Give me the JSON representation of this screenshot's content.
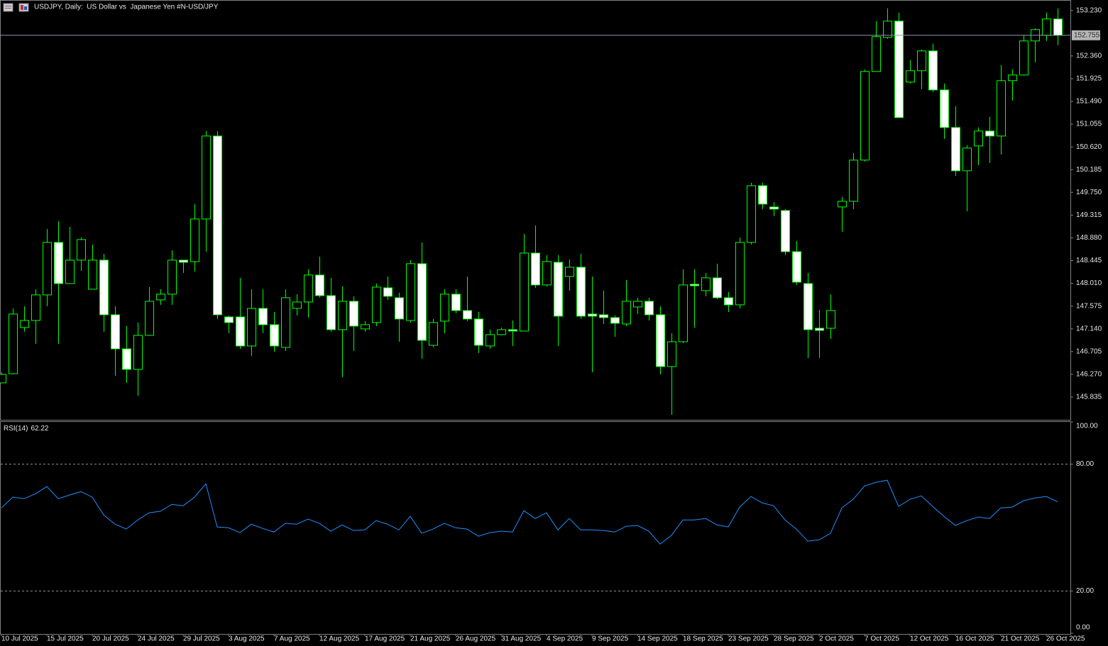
{
  "chart_data": [
    {
      "type": "candlestick",
      "title": "USDJPY, Daily:  US Dollar vs  Japanese Yen #N-USD/JPY",
      "categories": [
        "10 Jul 2025",
        null,
        null,
        null,
        "15 Jul 2025",
        null,
        null,
        null,
        "20 Jul 2025",
        null,
        null,
        null,
        "24 Jul 2025",
        null,
        null,
        null,
        "29 Jul 2025",
        null,
        null,
        null,
        "3 Aug 2025",
        null,
        null,
        null,
        "7 Aug 2025",
        null,
        null,
        null,
        "12 Aug 2025",
        null,
        null,
        null,
        "17 Aug 2025",
        null,
        null,
        null,
        "21 Aug 2025",
        null,
        null,
        null,
        "26 Aug 2025",
        null,
        null,
        null,
        "31 Aug 2025",
        null,
        null,
        null,
        "4 Sep 2025",
        null,
        null,
        null,
        "9 Sep 2025",
        null,
        null,
        null,
        "14 Sep 2025",
        null,
        null,
        null,
        "18 Sep 2025",
        null,
        null,
        null,
        "23 Sep 2025",
        null,
        null,
        null,
        "28 Sep 2025",
        null,
        null,
        null,
        "2 Oct 2025",
        null,
        null,
        null,
        "7 Oct 2025",
        null,
        null,
        null,
        "12 Oct 2025",
        null,
        null,
        null,
        "16 Oct 2025",
        null,
        null,
        null,
        "21 Oct 2025",
        null,
        null,
        null,
        "26 Oct 2025",
        null
      ],
      "open": [
        146.106,
        146.282,
        147.165,
        147.3,
        147.789,
        148.793,
        148.006,
        148.454,
        147.898,
        148.454,
        147.409,
        146.757,
        146.364,
        147.015,
        147.694,
        147.803,
        148.454,
        148.426,
        149.241,
        150.828,
        147.368,
        147.368,
        146.812,
        147.531,
        147.219,
        146.785,
        147.531,
        147.653,
        148.169,
        147.775,
        147.124,
        147.667,
        147.138,
        147.26,
        147.925,
        147.735,
        147.3,
        148.386,
        146.825,
        147.287,
        147.803,
        147.49,
        147.328,
        146.812,
        147.029,
        147.124,
        147.097,
        148.589,
        147.979,
        148.413,
        148.142,
        148.318,
        147.423,
        147.409,
        147.355,
        147.233,
        147.558,
        147.667,
        147.409,
        146.418,
        146.893,
        147.992,
        147.87,
        148.115,
        147.735,
        147.599,
        148.793,
        149.878,
        149.471,
        149.403,
        148.616,
        148.006,
        147.151,
        147.151,
        149.471,
        149.58,
        150.367,
        152.063,
        152.714,
        153.026,
        151.86,
        152.077,
        152.456,
        151.71,
        150.991,
        150.163,
        150.638,
        150.923,
        150.828,
        151.887,
        151.995,
        152.647,
        152.755,
        153.067
      ],
      "high": [
        146.31,
        147.531,
        147.572,
        147.898,
        149.051,
        149.2,
        149.091,
        148.888,
        148.752,
        148.576,
        147.572,
        147.192,
        147.26,
        147.938,
        147.898,
        148.643,
        148.454,
        149.526,
        150.923,
        150.923,
        147.395,
        148.115,
        147.898,
        147.898,
        147.463,
        147.898,
        147.803,
        148.277,
        148.521,
        148.115,
        147.952,
        147.762,
        147.287,
        148.006,
        148.142,
        147.83,
        148.454,
        148.793,
        147.328,
        147.898,
        147.898,
        148.142,
        147.463,
        147.124,
        147.165,
        147.3,
        148.956,
        149.118,
        148.549,
        148.549,
        148.467,
        148.576,
        148.142,
        147.87,
        147.395,
        148.074,
        147.735,
        147.735,
        147.572,
        147.056,
        148.277,
        148.277,
        148.21,
        148.386,
        147.843,
        148.888,
        149.932,
        149.932,
        149.566,
        149.43,
        148.82,
        148.21,
        147.504,
        147.803,
        149.661,
        150.503,
        152.104,
        153.026,
        153.271,
        153.189,
        152.28,
        152.484,
        152.592,
        151.832,
        151.398,
        150.652,
        150.991,
        151.195,
        152.185,
        152.104,
        152.755,
        152.891,
        153.189,
        153.271
      ],
      "low": [
        146.106,
        146.269,
        147.083,
        146.853,
        147.572,
        146.853,
        148.006,
        148.25,
        147.898,
        147.083,
        146.242,
        146.106,
        145.862,
        147.015,
        147.599,
        147.599,
        148.21,
        148.237,
        148.616,
        147.328,
        147.056,
        146.757,
        146.622,
        147.056,
        146.703,
        146.717,
        147.395,
        147.355,
        147.735,
        147.083,
        146.215,
        146.717,
        147.083,
        147.192,
        147.694,
        146.893,
        147.26,
        146.568,
        146.785,
        147.056,
        147.436,
        147.287,
        146.676,
        146.757,
        147.015,
        146.812,
        147.097,
        147.925,
        147.952,
        146.812,
        147.87,
        147.328,
        146.31,
        147.233,
        146.988,
        147.192,
        147.423,
        147.3,
        146.269,
        145.495,
        146.866,
        147.165,
        147.762,
        147.707,
        147.463,
        147.531,
        148.752,
        149.43,
        149.295,
        148.549,
        147.979,
        146.581,
        146.581,
        146.947,
        148.996,
        149.43,
        150.34,
        152.063,
        152.687,
        151.181,
        151.832,
        151.724,
        151.669,
        150.774,
        150.068,
        149.39,
        150.272,
        150.313,
        150.475,
        151.507,
        151.982,
        152.239,
        152.647,
        152.565
      ],
      "close": [
        146.269,
        147.423,
        147.3,
        147.789,
        148.793,
        148.006,
        148.454,
        148.847,
        148.454,
        147.409,
        146.757,
        146.364,
        147.015,
        147.667,
        147.803,
        148.454,
        148.413,
        149.241,
        150.828,
        147.409,
        147.26,
        146.812,
        147.531,
        147.219,
        146.812,
        147.735,
        147.653,
        148.169,
        147.775,
        147.124,
        147.667,
        147.192,
        147.219,
        147.938,
        147.762,
        147.328,
        148.386,
        146.92,
        147.26,
        147.803,
        147.49,
        147.328,
        146.825,
        147.029,
        147.124,
        147.097,
        148.589,
        147.979,
        148.426,
        147.382,
        148.318,
        147.382,
        147.382,
        147.355,
        147.246,
        147.667,
        147.667,
        147.409,
        146.418,
        146.893,
        147.979,
        147.965,
        148.115,
        147.735,
        147.599,
        148.793,
        149.878,
        149.526,
        149.43,
        148.616,
        148.033,
        147.124,
        147.11,
        147.49,
        149.58,
        150.367,
        152.063,
        152.728,
        153.026,
        151.181,
        152.077,
        152.456,
        151.71,
        150.991,
        150.163,
        150.598,
        150.923,
        150.828,
        151.887,
        151.995,
        152.647,
        152.864,
        153.067,
        152.755
      ],
      "up_color": "#000000",
      "down_color": "#ffffff",
      "outline_color": "#00ff00",
      "price_line_color": "#8a9bb0",
      "ylim": [
        145.4,
        153.43
      ],
      "yticks": [
        {
          "value": 153.23,
          "label": "153.230"
        },
        {
          "value": 152.36,
          "label": "152.360"
        },
        {
          "value": 151.925,
          "label": "151.925"
        },
        {
          "value": 151.49,
          "label": "151.490"
        },
        {
          "value": 151.055,
          "label": "151.055"
        },
        {
          "value": 150.62,
          "label": "150.620"
        },
        {
          "value": 150.185,
          "label": "150.185"
        },
        {
          "value": 149.75,
          "label": "149.750"
        },
        {
          "value": 149.315,
          "label": "149.315"
        },
        {
          "value": 148.88,
          "label": "148.880"
        },
        {
          "value": 148.445,
          "label": "148.445"
        },
        {
          "value": 148.01,
          "label": "148.010"
        },
        {
          "value": 147.575,
          "label": "147.575"
        },
        {
          "value": 147.14,
          "label": "147.140"
        },
        {
          "value": 146.705,
          "label": "146.705"
        },
        {
          "value": 146.27,
          "label": "146.270"
        },
        {
          "value": 145.835,
          "label": "145.835"
        }
      ]
    },
    {
      "type": "line",
      "title": "RSI(14)",
      "color": "#1e90ff",
      "values": [
        59.3,
        64.4,
        63.7,
        66.0,
        69.4,
        63.7,
        65.4,
        67.0,
        64.4,
        56.0,
        51.6,
        49.3,
        53.6,
        57.0,
        57.7,
        61.0,
        60.3,
        64.4,
        70.7,
        50.3,
        49.9,
        47.6,
        51.6,
        49.6,
        47.9,
        52.0,
        51.6,
        54.0,
        52.0,
        48.3,
        51.3,
        48.6,
        48.9,
        53.3,
        51.6,
        48.9,
        55.3,
        47.3,
        49.3,
        52.0,
        49.9,
        49.3,
        45.9,
        47.6,
        48.3,
        47.9,
        58.0,
        54.3,
        57.0,
        48.9,
        54.3,
        48.9,
        48.9,
        48.6,
        47.9,
        50.6,
        51.0,
        48.3,
        42.2,
        46.3,
        53.6,
        53.6,
        54.3,
        51.3,
        50.3,
        59.7,
        64.7,
        61.7,
        60.3,
        53.6,
        49.3,
        43.6,
        44.2,
        47.3,
        59.3,
        63.4,
        69.7,
        71.4,
        72.4,
        60.0,
        63.4,
        65.0,
        60.0,
        55.3,
        51.0,
        53.3,
        55.0,
        54.3,
        59.3,
        59.7,
        62.7,
        64.0,
        64.7,
        62.22
      ],
      "ylim": [
        0,
        100
      ],
      "yticks": [
        {
          "value": 100,
          "label": "100.00"
        },
        {
          "value": 80,
          "label": "80.00"
        },
        {
          "value": 20,
          "label": "20.00"
        },
        {
          "value": 0,
          "label": "0.00"
        }
      ],
      "levels": [
        80,
        20
      ],
      "level_color": "#c0c0c0"
    }
  ]
}
